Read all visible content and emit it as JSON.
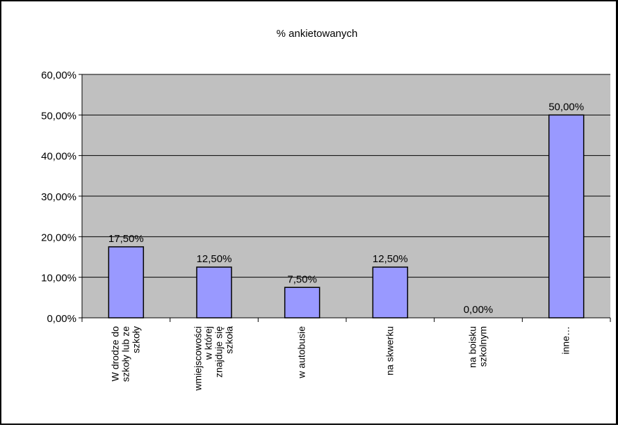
{
  "chart_data": {
    "type": "bar",
    "title": "% ankietowanych",
    "categories": [
      [
        "W drodze do",
        "szkoły lub ze",
        "szkoły"
      ],
      [
        "wmiejscowości",
        "w której",
        "znajduje się",
        "szkoła"
      ],
      [
        "w autobusie"
      ],
      [
        "na skwerku"
      ],
      [
        "na boisku",
        "szkolnym"
      ],
      [
        "inne…"
      ]
    ],
    "values": [
      17.5,
      12.5,
      7.5,
      12.5,
      0.0,
      50.0
    ],
    "data_labels": [
      "17,50%",
      "12,50%",
      "7,50%",
      "12,50%",
      "0,00%",
      "50,00%"
    ],
    "y_ticks": [
      "0,00%",
      "10,00%",
      "20,00%",
      "30,00%",
      "40,00%",
      "50,00%",
      "60,00%"
    ],
    "ylim": [
      0,
      60
    ],
    "grid": true,
    "xlabel": "",
    "ylabel": "",
    "colors": {
      "plot_background": "#c0c0c0",
      "bar_fill": "#9999ff",
      "bar_stroke": "#000000",
      "gridline": "#000000"
    }
  }
}
